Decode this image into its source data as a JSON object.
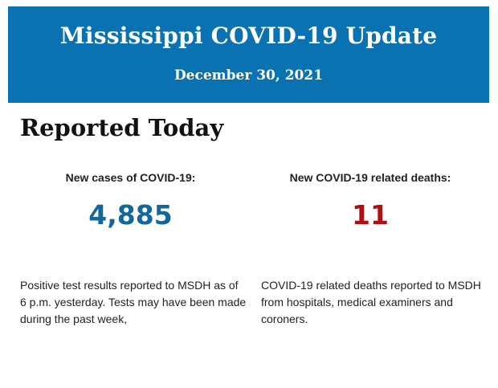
{
  "banner": {
    "title": "Mississippi COVID-19 Update",
    "date": "December 30, 2021",
    "color": "#0a72b0"
  },
  "section_heading": "Reported Today",
  "cases": {
    "label": "New cases of COVID-19:",
    "value": "4,885",
    "note": "Positive test results reported to MSDH as of 6 p.m. yesterday. Tests may have been made during the past week,",
    "color": "#12679b"
  },
  "deaths": {
    "label": "New COVID-19 related deaths:",
    "value": "11",
    "note": "COVID-19 related deaths reported to MSDH from hospitals, medical examiners and coroners.",
    "color": "#b30f12"
  }
}
